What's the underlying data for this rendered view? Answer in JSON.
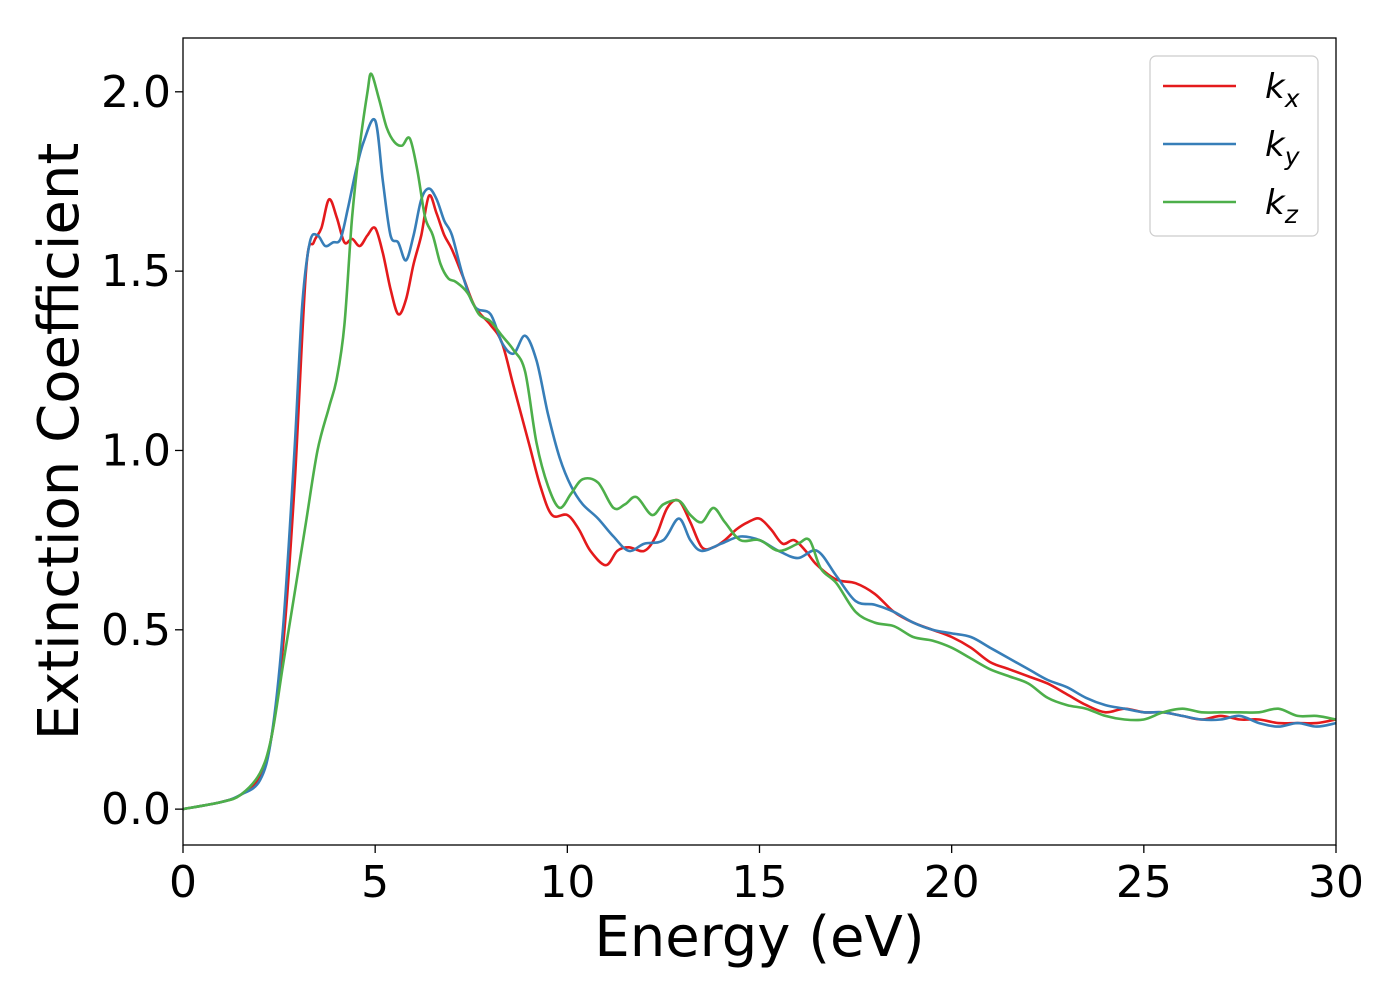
{
  "chart_data": {
    "type": "line",
    "xlabel": "Energy (eV)",
    "ylabel": "Extinction Coefficient",
    "xlim": [
      0,
      30
    ],
    "ylim": [
      -0.1,
      2.15
    ],
    "xticks": [
      0,
      5,
      10,
      15,
      20,
      25,
      30
    ],
    "xtick_labels": [
      "0",
      "5",
      "10",
      "15",
      "20",
      "25",
      "30"
    ],
    "yticks": [
      0.0,
      0.5,
      1.0,
      1.5,
      2.0
    ],
    "ytick_labels": [
      "0.0",
      "0.5",
      "1.0",
      "1.5",
      "2.0"
    ],
    "grid": false,
    "legend_position": "top-right",
    "series": [
      {
        "name": "k_x",
        "legend_base": "k",
        "legend_sub": "x",
        "color": "#e41a1c",
        "x": [
          0,
          1,
          1.5,
          2,
          2.3,
          2.6,
          2.9,
          3.2,
          3.4,
          3.6,
          3.8,
          4.0,
          4.2,
          4.4,
          4.6,
          4.8,
          5.0,
          5.2,
          5.4,
          5.6,
          5.8,
          6.0,
          6.2,
          6.4,
          6.6,
          6.8,
          7.0,
          7.3,
          7.6,
          8.0,
          8.3,
          8.6,
          9.0,
          9.3,
          9.6,
          10.0,
          10.3,
          10.6,
          11.0,
          11.3,
          11.6,
          12.0,
          12.3,
          12.6,
          12.9,
          13.2,
          13.5,
          13.8,
          14.1,
          14.4,
          14.7,
          15.0,
          15.3,
          15.6,
          15.9,
          16.2,
          16.5,
          17.0,
          17.5,
          18.0,
          18.5,
          19.0,
          19.5,
          20.0,
          20.5,
          21.0,
          21.5,
          22.0,
          22.5,
          23.0,
          23.5,
          24.0,
          24.5,
          25.0,
          25.5,
          26.0,
          26.5,
          27.0,
          27.5,
          28.0,
          28.5,
          29.0,
          29.5,
          30.0
        ],
        "y": [
          0.0,
          0.02,
          0.04,
          0.09,
          0.2,
          0.45,
          0.9,
          1.5,
          1.58,
          1.62,
          1.7,
          1.65,
          1.58,
          1.59,
          1.57,
          1.6,
          1.62,
          1.55,
          1.45,
          1.38,
          1.42,
          1.52,
          1.6,
          1.71,
          1.66,
          1.6,
          1.56,
          1.48,
          1.4,
          1.35,
          1.3,
          1.18,
          1.02,
          0.9,
          0.82,
          0.82,
          0.78,
          0.72,
          0.68,
          0.72,
          0.73,
          0.72,
          0.76,
          0.84,
          0.86,
          0.8,
          0.73,
          0.73,
          0.75,
          0.78,
          0.8,
          0.81,
          0.78,
          0.74,
          0.75,
          0.72,
          0.68,
          0.64,
          0.63,
          0.6,
          0.55,
          0.52,
          0.5,
          0.48,
          0.45,
          0.41,
          0.39,
          0.37,
          0.35,
          0.32,
          0.29,
          0.27,
          0.28,
          0.27,
          0.27,
          0.26,
          0.25,
          0.26,
          0.25,
          0.25,
          0.24,
          0.24,
          0.24,
          0.25
        ]
      },
      {
        "name": "k_y",
        "legend_base": "k",
        "legend_sub": "y",
        "color": "#377eb8",
        "x": [
          0,
          1,
          1.5,
          2,
          2.3,
          2.6,
          2.9,
          3.1,
          3.3,
          3.5,
          3.7,
          3.9,
          4.1,
          4.3,
          4.5,
          4.7,
          5.0,
          5.2,
          5.4,
          5.6,
          5.8,
          6.0,
          6.2,
          6.4,
          6.6,
          6.8,
          7.0,
          7.3,
          7.6,
          8.0,
          8.3,
          8.6,
          8.9,
          9.2,
          9.5,
          9.8,
          10.1,
          10.4,
          10.8,
          11.2,
          11.6,
          12.0,
          12.5,
          12.9,
          13.2,
          13.5,
          14.0,
          14.5,
          15.0,
          15.5,
          16.0,
          16.5,
          17.0,
          17.5,
          18.0,
          18.5,
          19.0,
          19.5,
          20.0,
          20.5,
          21.0,
          21.5,
          22.0,
          22.5,
          23.0,
          23.5,
          24.0,
          24.5,
          25.0,
          25.5,
          26.0,
          26.5,
          27.0,
          27.5,
          28.0,
          28.5,
          29.0,
          29.5,
          30.0
        ],
        "y": [
          0.0,
          0.02,
          0.04,
          0.08,
          0.2,
          0.5,
          1.0,
          1.4,
          1.58,
          1.6,
          1.57,
          1.58,
          1.59,
          1.68,
          1.78,
          1.86,
          1.92,
          1.75,
          1.6,
          1.58,
          1.53,
          1.6,
          1.7,
          1.73,
          1.7,
          1.64,
          1.6,
          1.48,
          1.4,
          1.38,
          1.3,
          1.27,
          1.32,
          1.25,
          1.1,
          0.98,
          0.9,
          0.85,
          0.81,
          0.76,
          0.72,
          0.74,
          0.75,
          0.81,
          0.75,
          0.72,
          0.74,
          0.76,
          0.75,
          0.72,
          0.7,
          0.72,
          0.65,
          0.58,
          0.57,
          0.55,
          0.52,
          0.5,
          0.49,
          0.48,
          0.45,
          0.42,
          0.39,
          0.36,
          0.34,
          0.31,
          0.29,
          0.28,
          0.27,
          0.27,
          0.26,
          0.25,
          0.25,
          0.26,
          0.24,
          0.23,
          0.24,
          0.23,
          0.24
        ]
      },
      {
        "name": "k_z",
        "legend_base": "k",
        "legend_sub": "z",
        "color": "#4daf4a",
        "x": [
          0,
          1,
          1.5,
          2,
          2.3,
          2.6,
          2.9,
          3.2,
          3.5,
          3.8,
          4.0,
          4.2,
          4.4,
          4.6,
          4.8,
          4.9,
          5.1,
          5.3,
          5.5,
          5.7,
          5.9,
          6.1,
          6.3,
          6.5,
          6.7,
          6.9,
          7.1,
          7.4,
          7.7,
          8.0,
          8.3,
          8.6,
          8.9,
          9.2,
          9.5,
          9.8,
          10.1,
          10.4,
          10.8,
          11.2,
          11.5,
          11.8,
          12.2,
          12.5,
          12.9,
          13.2,
          13.5,
          13.8,
          14.1,
          14.5,
          15.0,
          15.5,
          16.0,
          16.3,
          16.6,
          17.0,
          17.5,
          18.0,
          18.5,
          19.0,
          19.5,
          20.0,
          20.5,
          21.0,
          21.5,
          22.0,
          22.5,
          23.0,
          23.5,
          24.0,
          24.5,
          25.0,
          25.5,
          26.0,
          26.5,
          27.0,
          27.5,
          28.0,
          28.5,
          29.0,
          29.5,
          30.0
        ],
        "y": [
          0.0,
          0.02,
          0.04,
          0.1,
          0.2,
          0.4,
          0.6,
          0.8,
          1.0,
          1.12,
          1.2,
          1.35,
          1.65,
          1.85,
          2.0,
          2.05,
          1.98,
          1.9,
          1.86,
          1.85,
          1.87,
          1.78,
          1.65,
          1.6,
          1.52,
          1.48,
          1.47,
          1.44,
          1.38,
          1.36,
          1.32,
          1.28,
          1.22,
          1.02,
          0.9,
          0.84,
          0.88,
          0.92,
          0.91,
          0.84,
          0.85,
          0.87,
          0.82,
          0.85,
          0.86,
          0.82,
          0.8,
          0.84,
          0.8,
          0.75,
          0.75,
          0.72,
          0.74,
          0.75,
          0.67,
          0.63,
          0.55,
          0.52,
          0.51,
          0.48,
          0.47,
          0.45,
          0.42,
          0.39,
          0.37,
          0.35,
          0.31,
          0.29,
          0.28,
          0.26,
          0.25,
          0.25,
          0.27,
          0.28,
          0.27,
          0.27,
          0.27,
          0.27,
          0.28,
          0.26,
          0.26,
          0.25
        ]
      }
    ]
  }
}
